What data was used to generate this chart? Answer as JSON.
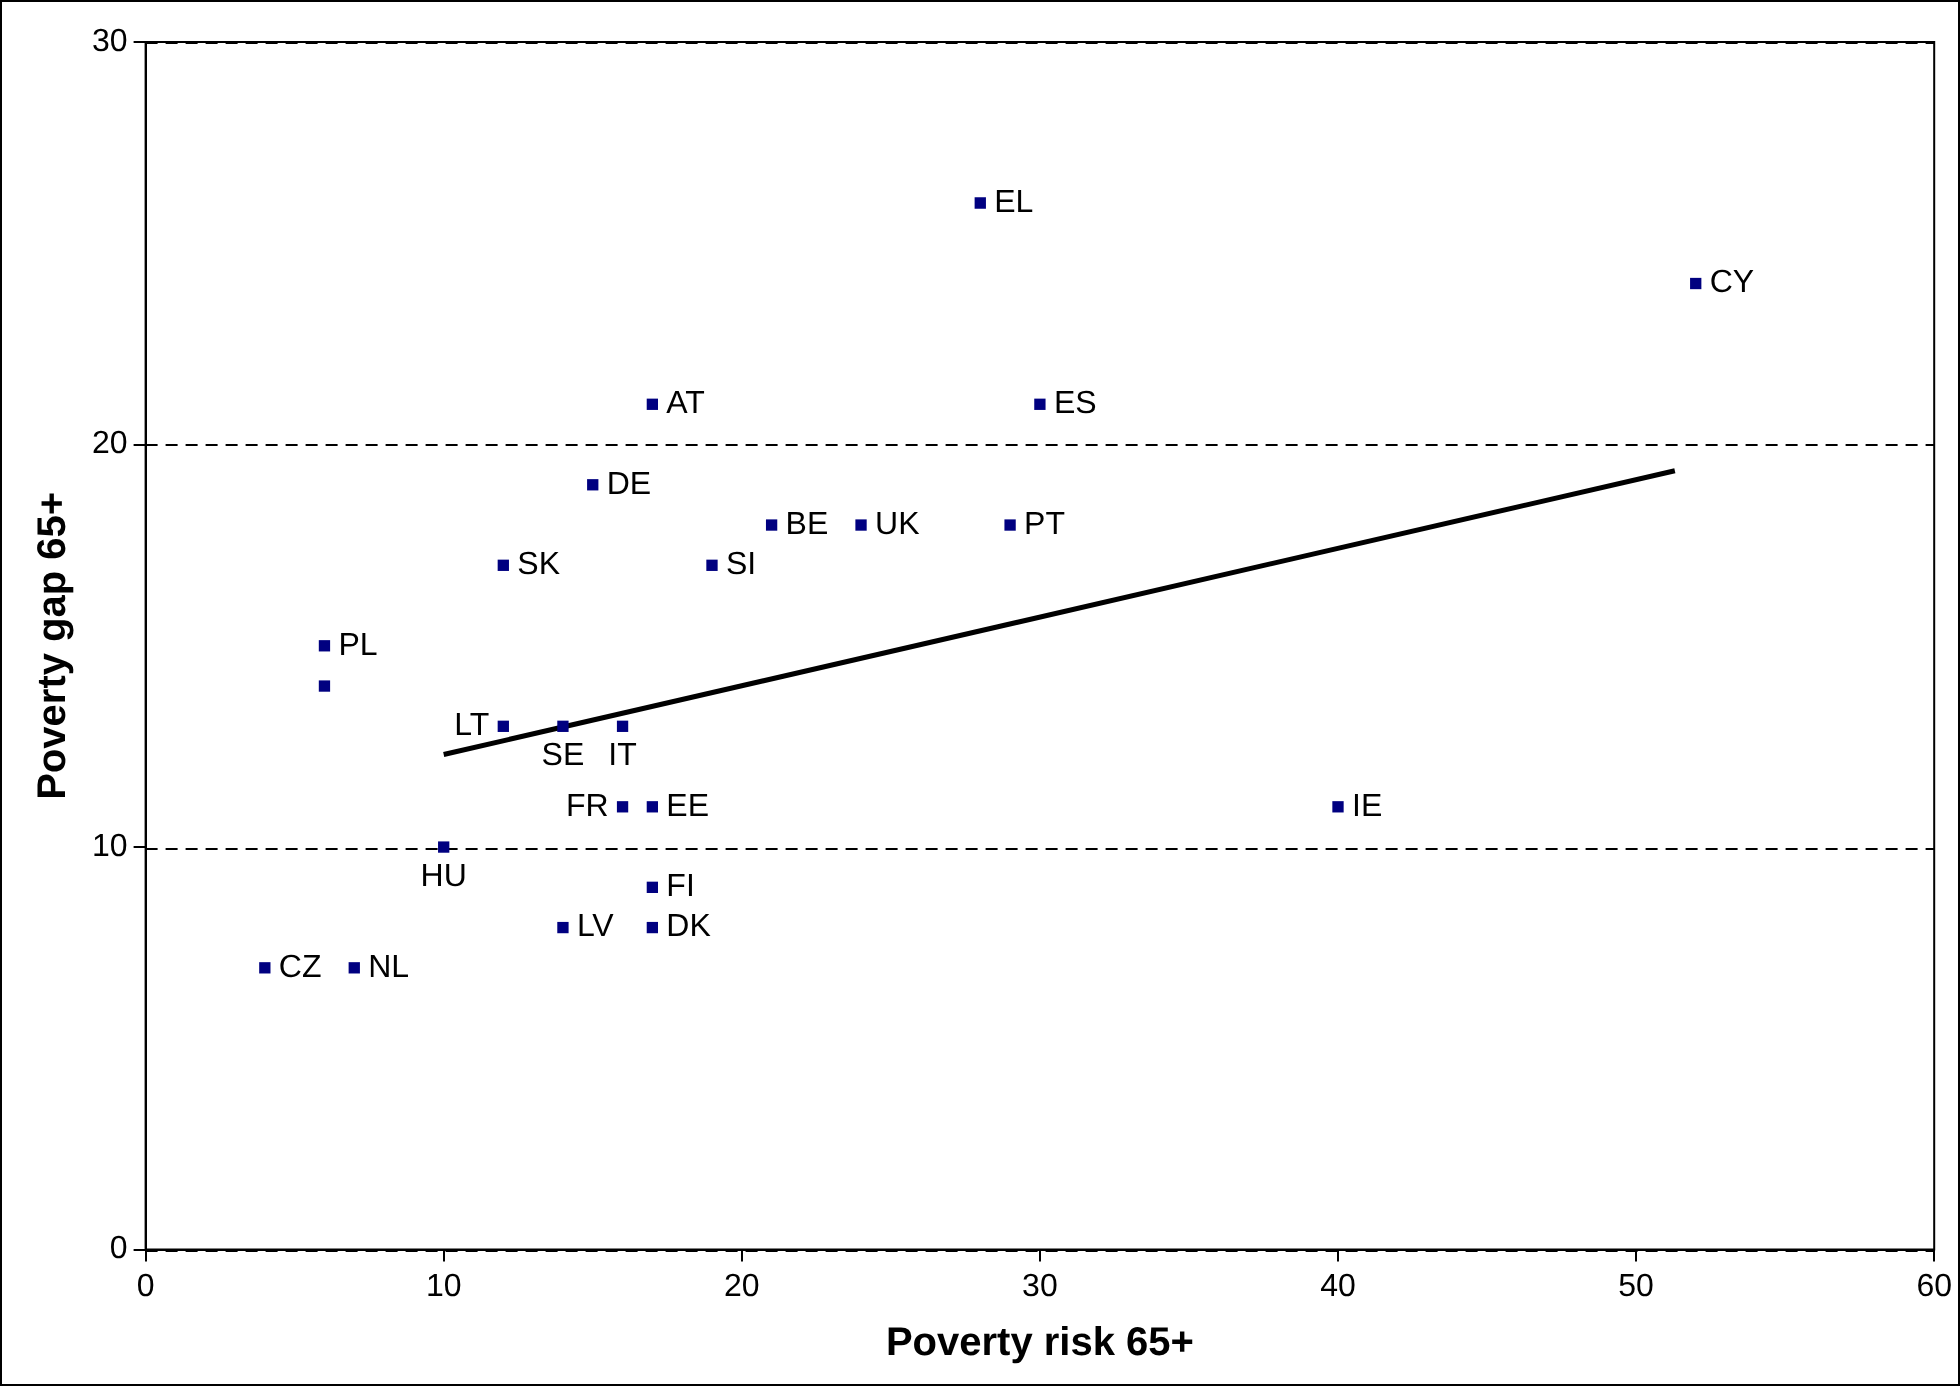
{
  "chart_data": {
    "type": "scatter",
    "xlabel": "Poverty risk 65+",
    "ylabel": "Poverty gap 65+",
    "xlim": [
      0,
      60
    ],
    "xticks": [
      0,
      10,
      20,
      30,
      40,
      50,
      60
    ],
    "ylim": [
      0,
      30
    ],
    "yticks": [
      0,
      10,
      20,
      30
    ],
    "grid": "y",
    "legend": false,
    "series": [
      {
        "type": "scatter",
        "marker": "square",
        "color": "#000080",
        "x": [
          28,
          52,
          17,
          30,
          15,
          21,
          24,
          29,
          12,
          19,
          6,
          6,
          12,
          14,
          16,
          16,
          17,
          40,
          10,
          17,
          14,
          17,
          4,
          7
        ],
        "values": [
          26,
          24,
          21,
          21,
          19,
          18,
          18,
          18,
          17,
          17,
          15,
          14,
          13,
          13,
          13,
          11,
          11,
          11,
          10,
          9,
          8,
          8,
          7,
          7
        ]
      },
      {
        "type": "line",
        "marker": "none",
        "line_style": "solid",
        "color": "#000000",
        "x": [
          10,
          51.3
        ],
        "values": [
          12.3,
          19.35
        ]
      }
    ],
    "annotations": [
      {
        "text": "EL",
        "x": 28,
        "y": 26
      },
      {
        "text": "CY",
        "x": 52,
        "y": 24
      },
      {
        "text": "AT",
        "x": 17,
        "y": 21
      },
      {
        "text": "ES",
        "x": 30,
        "y": 21
      },
      {
        "text": "DE",
        "x": 15,
        "y": 19
      },
      {
        "text": "BE",
        "x": 21,
        "y": 18
      },
      {
        "text": "UK",
        "x": 24,
        "y": 18
      },
      {
        "text": "PT",
        "x": 29,
        "y": 18
      },
      {
        "text": "SK",
        "x": 12,
        "y": 17
      },
      {
        "text": "SI",
        "x": 19,
        "y": 17
      },
      {
        "text": "PL",
        "x": 6,
        "y": 15
      },
      {
        "text": "LT",
        "x": 12,
        "y": 13
      },
      {
        "text": "SE",
        "x": 14,
        "y": 13
      },
      {
        "text": "IT",
        "x": 16,
        "y": 13
      },
      {
        "text": "FR",
        "x": 16,
        "y": 11
      },
      {
        "text": "EE",
        "x": 17,
        "y": 11
      },
      {
        "text": "IE",
        "x": 40,
        "y": 11
      },
      {
        "text": "HU",
        "x": 10,
        "y": 10
      },
      {
        "text": "FI",
        "x": 17,
        "y": 9
      },
      {
        "text": "LV",
        "x": 14,
        "y": 8
      },
      {
        "text": "DK",
        "x": 17,
        "y": 8
      },
      {
        "text": "CZ",
        "x": 4,
        "y": 7
      },
      {
        "text": "NL",
        "x": 7,
        "y": 7
      }
    ]
  }
}
